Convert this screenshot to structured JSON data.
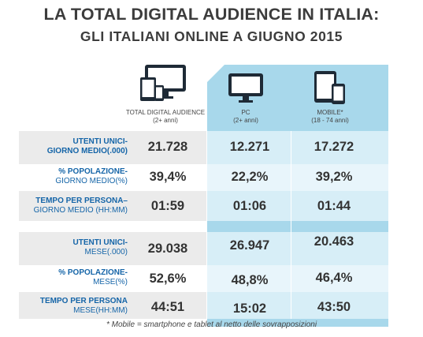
{
  "title": {
    "line1": "LA TOTAL DIGITAL AUDIENCE IN ITALIA:",
    "line2": "GLI ITALIANI ONLINE A GIUGNO 2015"
  },
  "columns": [
    {
      "label": "TOTAL DIGITAL AUDIENCE",
      "sublabel": "(2+ anni)",
      "icon": "multi-device-icon"
    },
    {
      "label": "PC",
      "sublabel": "(2+ anni)",
      "icon": "desktop-monitor-icon"
    },
    {
      "label": "MOBILE*",
      "sublabel": "(18 - 74 anni)",
      "icon": "smartphone-tablet-icon"
    }
  ],
  "chart_data": {
    "type": "table",
    "title": "LA TOTAL DIGITAL AUDIENCE IN ITALIA: GLI ITALIANI ONLINE A GIUGNO 2015",
    "columns": [
      "TOTAL DIGITAL AUDIENCE",
      "PC",
      "MOBILE*"
    ],
    "rows": [
      {
        "label_bold": "UTENTI UNICI-",
        "label_rest": "GIORNO MEDIO(.000)",
        "values": [
          "21.728",
          "12.271",
          "17.272"
        ]
      },
      {
        "label_bold": "% POPOLAZIONE-",
        "label_rest": "GIORNO MEDIO(%)",
        "values": [
          "39,4%",
          "22,2%",
          "39,2%"
        ]
      },
      {
        "label_bold": "TEMPO PER PERSONA–",
        "label_rest": "GIORNO MEDIO (HH:MM)",
        "values": [
          "01:59",
          "01:06",
          "01:44"
        ]
      },
      {
        "label_bold": "UTENTI UNICI-",
        "label_rest": "MESE(.000)",
        "values": [
          "29.038",
          "26.947",
          "20.463"
        ]
      },
      {
        "label_bold": "% POPOLAZIONE-",
        "label_rest": "MESE(%)",
        "values": [
          "52,6%",
          "48,8%",
          "46,4%"
        ]
      },
      {
        "label_bold": "TEMPO PER PERSONA",
        "label_rest": "MESE(HH:MM)",
        "values": [
          "44:51",
          "15:02",
          "43:50"
        ]
      }
    ]
  },
  "footnote": "* Mobile = smartphone e tablet al netto delle sovrapposizioni",
  "colors": {
    "label_blue": "#1565a8",
    "panel_blue": "#a8d8eb",
    "row_grey": "#ebebeb",
    "title_grey": "#3c3c3c"
  }
}
